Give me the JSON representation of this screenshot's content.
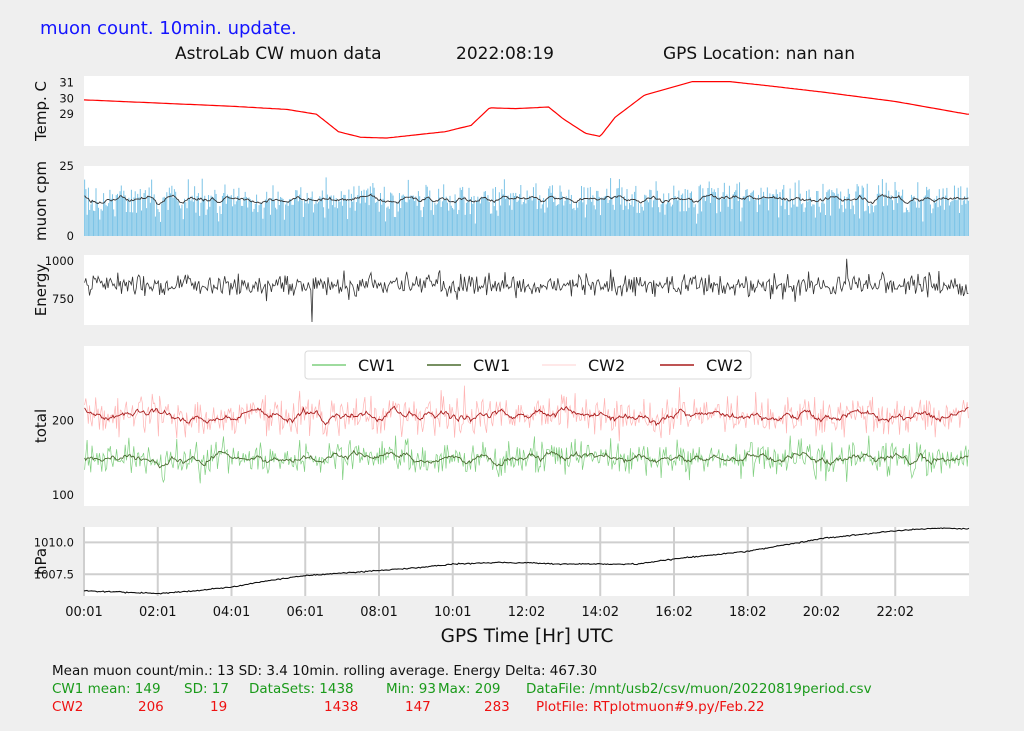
{
  "header": {
    "update_note": "muon count.  10min. update.",
    "title": "AstroLab CW muon data",
    "date": "2022:08:19",
    "gps_location": "GPS Location: nan   nan"
  },
  "colors": {
    "update_note": "#1414ff",
    "temperature": "#ff0000",
    "muon_bars": "#5ab4e0",
    "muon_avg": "#333333",
    "energy": "#333333",
    "cw1_raw": "#7fcf7f",
    "cw1_avg": "#4a6b2f",
    "cw2_raw": "#ffb3b3",
    "cw2_avg": "#a81c1c",
    "pressure": "#111111",
    "cw1_stats": "#1a9a1a",
    "cw2_stats": "#ee1111"
  },
  "chart_data": [
    {
      "type": "line",
      "panel": "temperature",
      "ylabel": "Temp. C",
      "yticks": [
        "29",
        "30",
        "31"
      ],
      "ylim": [
        27.0,
        31.4
      ],
      "series": [
        {
          "values_points": [
            [
              0.0,
              29.9
            ],
            [
              2.0,
              29.7
            ],
            [
              4.0,
              29.5
            ],
            [
              5.5,
              29.3
            ],
            [
              6.3,
              29.0
            ],
            [
              6.9,
              27.9
            ],
            [
              7.5,
              27.55
            ],
            [
              8.2,
              27.5
            ],
            [
              9.0,
              27.7
            ],
            [
              9.8,
              27.9
            ],
            [
              10.5,
              28.3
            ],
            [
              11.0,
              29.4
            ],
            [
              11.7,
              29.35
            ],
            [
              12.6,
              29.45
            ],
            [
              13.0,
              28.7
            ],
            [
              13.6,
              27.8
            ],
            [
              14.0,
              27.6
            ],
            [
              14.4,
              28.8
            ],
            [
              15.2,
              30.2
            ],
            [
              16.5,
              31.05
            ],
            [
              17.5,
              31.05
            ],
            [
              18.5,
              30.8
            ],
            [
              20.0,
              30.4
            ],
            [
              22.0,
              29.8
            ],
            [
              23.95,
              29.0
            ]
          ]
        }
      ]
    },
    {
      "type": "bar",
      "panel": "muon_cpm",
      "ylabel": "muon cpm",
      "yticks": [
        "0",
        "25"
      ],
      "ylim": [
        0,
        25
      ],
      "mean": 13,
      "sd": 3.4,
      "rolling_avg_level": 13.2
    },
    {
      "type": "line",
      "panel": "energy",
      "ylabel": "Energy",
      "yticks": [
        "750",
        "1000"
      ],
      "ylim": [
        580,
        1040
      ],
      "baseline": 840,
      "spike_high": 1015,
      "spike_low": 600
    },
    {
      "type": "line",
      "panel": "total",
      "ylabel": "total",
      "yticks": [
        "100",
        "200"
      ],
      "ylim": [
        85,
        300
      ],
      "legend_position": "top-center",
      "series": [
        {
          "name": "CW1",
          "style": "raw",
          "mean": 149,
          "sd": 17,
          "min": 93,
          "max": 209
        },
        {
          "name": "CW1",
          "style": "rolling"
        },
        {
          "name": "CW2",
          "style": "raw",
          "mean": 206,
          "sd": 19,
          "min": 147,
          "max": 283
        },
        {
          "name": "CW2",
          "style": "rolling"
        }
      ]
    },
    {
      "type": "line",
      "panel": "pressure",
      "ylabel": "hPa",
      "yticks": [
        "1007.5",
        "1010.0"
      ],
      "ylim": [
        1005.8,
        1011.2
      ],
      "xlabel": "GPS Time  [Hr] UTC",
      "xticks": [
        "00:01",
        "02:01",
        "04:01",
        "06:01",
        "08:01",
        "10:01",
        "12:02",
        "14:02",
        "16:02",
        "18:02",
        "20:02",
        "22:02"
      ],
      "xlim": [
        0,
        24
      ],
      "series": [
        {
          "values_points": [
            [
              0.0,
              1006.2
            ],
            [
              1.0,
              1006.1
            ],
            [
              2.0,
              1006.0
            ],
            [
              3.0,
              1006.2
            ],
            [
              4.0,
              1006.5
            ],
            [
              5.0,
              1007.0
            ],
            [
              6.0,
              1007.4
            ],
            [
              7.0,
              1007.6
            ],
            [
              8.0,
              1007.8
            ],
            [
              9.0,
              1008.0
            ],
            [
              10.0,
              1008.3
            ],
            [
              11.0,
              1008.4
            ],
            [
              12.0,
              1008.4
            ],
            [
              13.0,
              1008.3
            ],
            [
              14.0,
              1008.3
            ],
            [
              15.0,
              1008.3
            ],
            [
              16.0,
              1008.7
            ],
            [
              17.0,
              1009.0
            ],
            [
              18.0,
              1009.3
            ],
            [
              19.0,
              1009.8
            ],
            [
              20.0,
              1010.3
            ],
            [
              21.0,
              1010.6
            ],
            [
              22.0,
              1010.9
            ],
            [
              23.0,
              1011.1
            ],
            [
              23.95,
              1011.05
            ]
          ]
        }
      ]
    }
  ],
  "stats": {
    "line1": "Mean muon count/min.: 13  SD: 3.4   10min. rolling average.    Energy Delta:  467.30",
    "cw1": {
      "label": "CW1 mean: 149",
      "sd": "SD: 17",
      "datasets": "DataSets: 1438",
      "min": "Min: 93",
      "max": "Max: 209",
      "file": "DataFile: /mnt/usb2/csv/muon/20220819period.csv"
    },
    "cw2": {
      "label": "CW2",
      "mean": "206",
      "sd": "19",
      "datasets": "1438",
      "min": "147",
      "max": "283",
      "file": "PlotFile: RTplotmuon#9.py/Feb.22"
    }
  }
}
